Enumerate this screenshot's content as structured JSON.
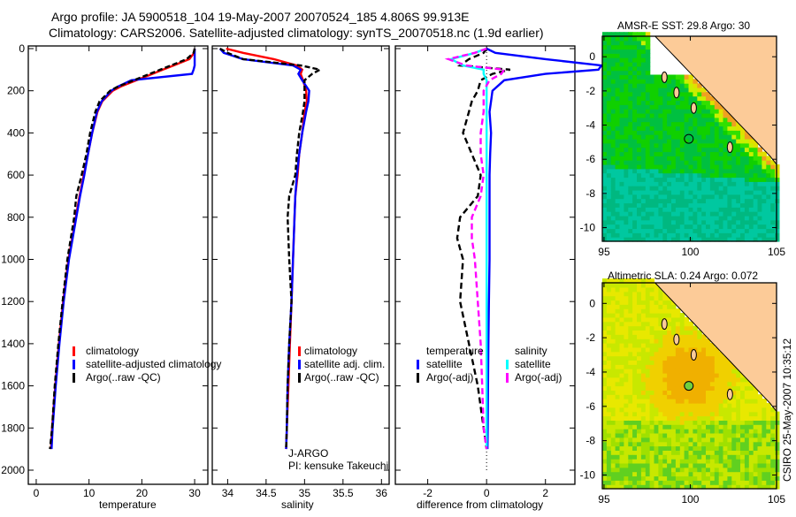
{
  "title_line1": "Argo profile: JA 5900518_104 19-May-2007 20070524_185 4.806S 99.913E",
  "title_line2": "Climatology: CARS2006. Satellite-adjusted climatology: synTS_20070518.nc (1.9d earlier)",
  "side_label": "CSIRO 25-May-2007 10:35:12",
  "colors": {
    "climatology": "#ff0000",
    "satellite": "#0000ff",
    "argo": "#000000",
    "sal_satellite": "#00ffff",
    "sal_argo": "#ff00ff",
    "land": "#fccb98"
  },
  "chart_data": [
    {
      "type": "line",
      "name": "temperature",
      "xlabel": "temperature",
      "ylabel": "",
      "xlim": [
        -1.5,
        32.5
      ],
      "ylim": [
        2100,
        0
      ],
      "xticks": [
        0,
        10,
        20,
        30
      ],
      "yticks": [
        0,
        200,
        400,
        600,
        800,
        1000,
        1200,
        1400,
        1600,
        1800,
        2000
      ],
      "legend": [
        "climatology",
        "satellite-adjusted climatology",
        "Argo(..raw -QC)"
      ],
      "legend_placement": "lower-middle",
      "depth": [
        0,
        20,
        50,
        80,
        100,
        120,
        150,
        180,
        200,
        250,
        300,
        400,
        500,
        600,
        700,
        800,
        1000,
        1200,
        1400,
        1600,
        1800,
        1900
      ],
      "series": [
        {
          "name": "climatology",
          "values": [
            30,
            29.9,
            29,
            26,
            24,
            22,
            19,
            16,
            14.5,
            12.5,
            11.6,
            10.6,
            9.8,
            9.0,
            8.2,
            7.5,
            6.1,
            5.1,
            4.3,
            3.6,
            3.0,
            2.8
          ]
        },
        {
          "name": "satellite",
          "values": [
            30,
            30,
            30,
            30,
            29.8,
            29.5,
            18,
            15.5,
            14.2,
            12.4,
            11.5,
            10.6,
            9.8,
            9.1,
            8.3,
            7.6,
            6.2,
            5.2,
            4.4,
            3.7,
            3.1,
            2.9
          ]
        },
        {
          "name": "argo",
          "values": [
            30,
            29.8,
            28.5,
            25.5,
            23.5,
            21.5,
            18.5,
            15.5,
            14,
            12,
            11.2,
            10.2,
            9.5,
            8.6,
            7.6,
            7.2,
            5.9,
            5.0,
            4.2,
            3.5,
            3.0,
            2.6
          ]
        }
      ]
    },
    {
      "type": "line",
      "name": "salinity",
      "xlabel": "salinity",
      "xlim": [
        33.8,
        36.1
      ],
      "ylim": [
        2100,
        0
      ],
      "xticks": [
        34,
        34.5,
        35,
        35.5,
        36
      ],
      "xtick_labels": [
        "34",
        "34.5",
        "35",
        "35.5",
        "36"
      ],
      "legend": [
        "climatology",
        "satellite adj. clim.",
        "Argo(..raw -QC)"
      ],
      "annotation": [
        "J-ARGO",
        "PI: kensuke Takeuchi"
      ],
      "depth": [
        0,
        20,
        50,
        80,
        100,
        120,
        150,
        200,
        250,
        300,
        400,
        500,
        600,
        700,
        800,
        1000,
        1200,
        1400,
        1600,
        1800,
        1900
      ],
      "series": [
        {
          "name": "climatology",
          "values": [
            33.98,
            34.2,
            34.6,
            34.9,
            34.97,
            34.95,
            34.98,
            35.02,
            35.03,
            35.0,
            34.97,
            34.93,
            34.91,
            34.88,
            34.87,
            34.85,
            34.83,
            34.81,
            34.79,
            34.77,
            34.76
          ]
        },
        {
          "name": "satellite",
          "values": [
            33.9,
            33.95,
            34.2,
            34.85,
            34.95,
            34.92,
            34.97,
            35.06,
            35.05,
            35.02,
            34.97,
            34.93,
            34.9,
            34.88,
            34.87,
            34.85,
            34.83,
            34.8,
            34.78,
            34.77,
            34.76
          ]
        },
        {
          "name": "argo",
          "values": [
            33.9,
            34.0,
            34.2,
            34.95,
            35.2,
            35.1,
            35.0,
            35.0,
            35.0,
            34.98,
            34.93,
            34.9,
            34.88,
            34.8,
            34.78,
            34.8,
            34.83,
            34.8,
            34.78,
            34.77,
            34.76
          ]
        }
      ]
    },
    {
      "type": "line",
      "name": "difference",
      "xlabel": "difference from climatology",
      "xlim": [
        -3.1,
        3.0
      ],
      "ylim": [
        2100,
        0
      ],
      "xticks": [
        -2,
        0,
        2
      ],
      "legend_temperature_title": "temperature",
      "legend_salinity_title": "salinity",
      "legend": [
        "satellite",
        "Argo(-adj)",
        "satellite",
        "Argo(-adj)"
      ],
      "depth": [
        0,
        20,
        50,
        80,
        100,
        120,
        150,
        200,
        250,
        300,
        400,
        500,
        600,
        700,
        800,
        900,
        1000,
        1200,
        1400,
        1600,
        1800,
        1900
      ],
      "series": [
        {
          "name": "temperature satellite",
          "values": [
            0,
            0.3,
            2.0,
            3.9,
            3.8,
            2.0,
            0.6,
            0.2,
            0.15,
            0.1,
            0.15,
            0.12,
            0.1,
            0.1,
            0.1,
            0.1,
            0.1,
            0.08,
            0.06,
            0.05,
            0.04,
            0.03
          ]
        },
        {
          "name": "temperature Argo(-adj)",
          "values": [
            0,
            -0.1,
            -0.6,
            -0.9,
            0.8,
            0.2,
            -0.2,
            -0.3,
            -0.5,
            -0.6,
            -0.8,
            -0.5,
            -0.2,
            -0.3,
            -0.9,
            -1.0,
            -0.8,
            -0.9,
            -0.6,
            -0.3,
            -0.1,
            0
          ]
        },
        {
          "name": "salinity satellite",
          "values": [
            0,
            -0.4,
            -1.2,
            -0.8,
            -0.1,
            -0.1,
            0,
            0,
            0,
            0,
            0,
            0,
            0,
            0,
            0,
            0,
            0,
            0,
            0,
            0,
            0,
            0
          ]
        },
        {
          "name": "salinity Argo(-adj)",
          "values": [
            0,
            -0.4,
            -1.3,
            -0.7,
            0.6,
            0.5,
            0.1,
            -0.1,
            -0.1,
            -0.1,
            -0.2,
            -0.2,
            -0.1,
            -0.2,
            -0.5,
            -0.5,
            -0.4,
            -0.3,
            -0.2,
            -0.15,
            -0.1,
            0
          ]
        }
      ]
    },
    {
      "type": "heatmap",
      "name": "sst-map",
      "title": "AMSR-E SST: 29.8 Argo: 30",
      "xlim": [
        94.9,
        105
      ],
      "ylim": [
        -10.8,
        1.2
      ],
      "xticks": [
        95,
        100,
        105
      ],
      "yticks": [
        0,
        -2,
        -4,
        -6,
        -8,
        -10
      ],
      "argo_position": [
        99.913,
        -4.806
      ]
    },
    {
      "type": "heatmap",
      "name": "sla-map",
      "title": "Altimetric SLA: 0.24 Argo: 0.072",
      "xlim": [
        94.9,
        105
      ],
      "ylim": [
        -10.8,
        1.2
      ],
      "xticks": [
        95,
        100,
        105
      ],
      "yticks": [
        0,
        -2,
        -4,
        -6,
        -8,
        -10
      ],
      "argo_position": [
        99.913,
        -4.806
      ]
    }
  ]
}
